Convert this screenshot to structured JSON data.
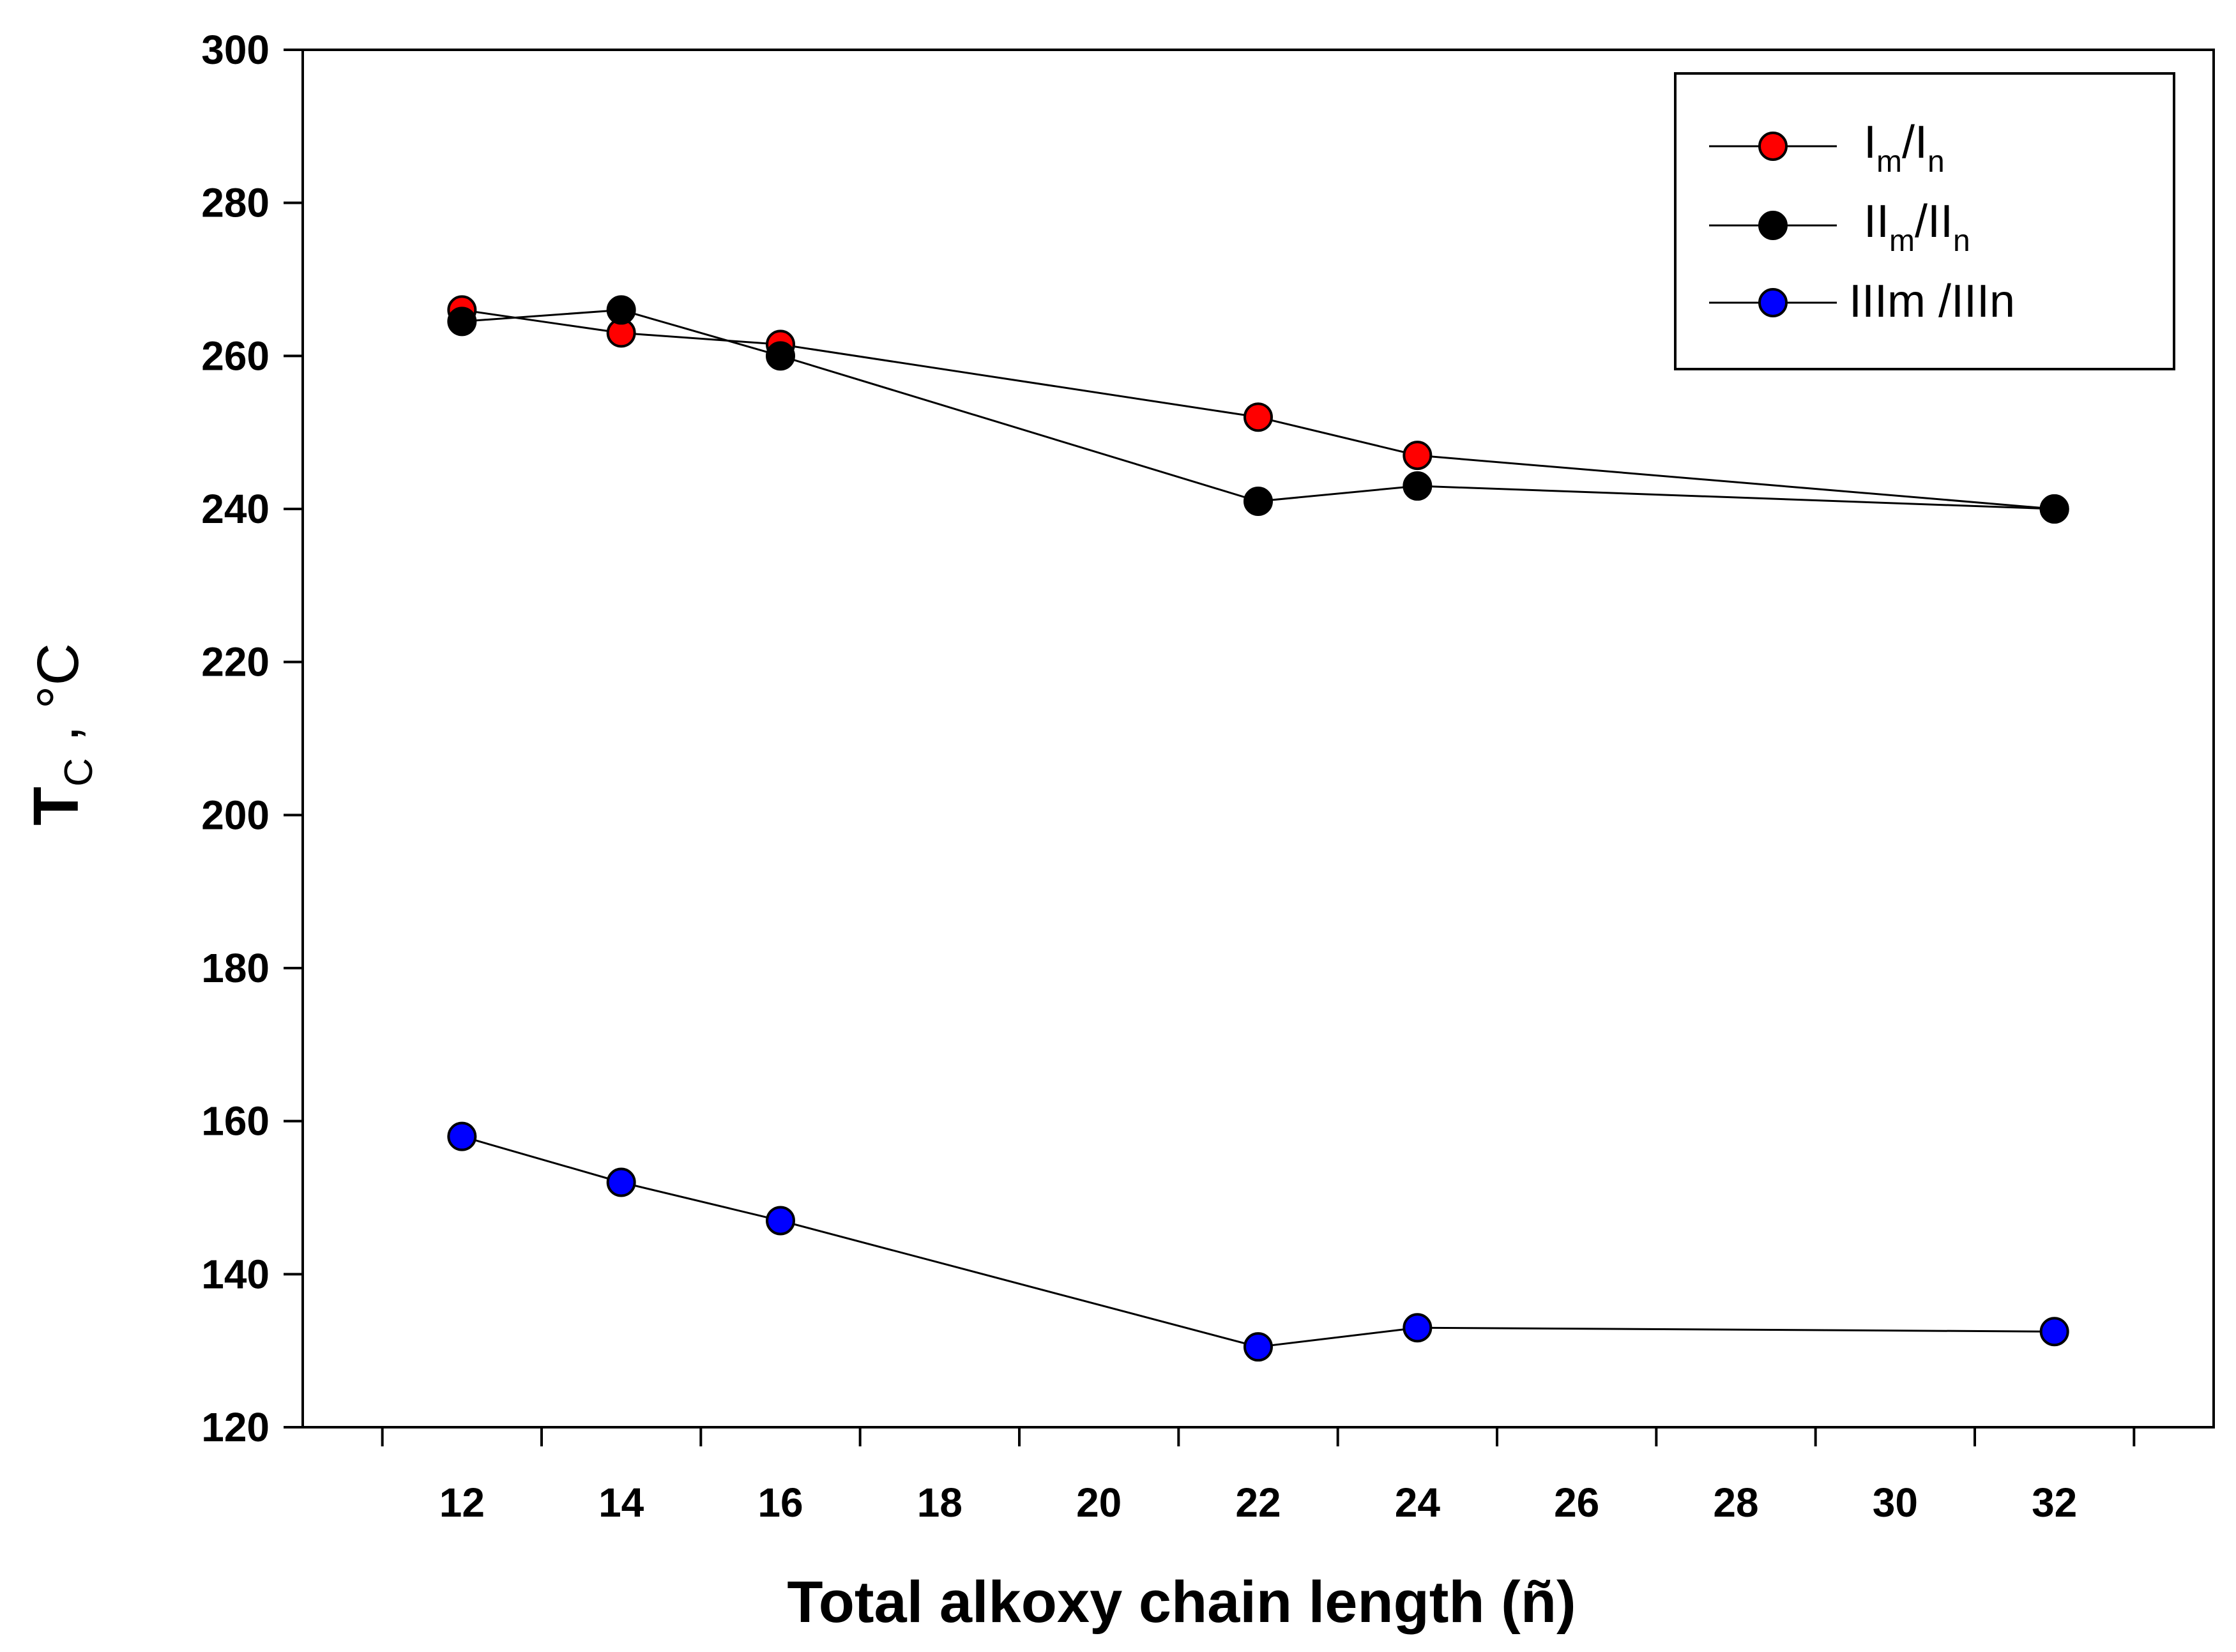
{
  "chart_data": {
    "type": "line",
    "title": "",
    "xlabel": "Total alkoxy chain length (ñ)",
    "ylabel_main": "T",
    "ylabel_sub": "C",
    "ylabel_tail": " , °C",
    "xlim": [
      10,
      34
    ],
    "ylim": [
      120,
      300
    ],
    "xticks": [
      12,
      14,
      16,
      18,
      20,
      22,
      24,
      26,
      28,
      30,
      32
    ],
    "yticks": [
      120,
      140,
      160,
      180,
      200,
      220,
      240,
      260,
      280,
      300
    ],
    "legend_position": "top-right",
    "series": [
      {
        "name": "Im/In",
        "label_main_1": "I",
        "label_sub_1": "m",
        "label_main_2": "/I",
        "label_sub_2": "n",
        "color": "#ff0000",
        "x": [
          12,
          14,
          16,
          22,
          24,
          32
        ],
        "values": [
          266,
          263,
          261.5,
          252,
          247,
          240
        ]
      },
      {
        "name": "IIm/IIn",
        "label_main_1": "II",
        "label_sub_1": "m",
        "label_main_2": "/II",
        "label_sub_2": "n",
        "color": "#000000",
        "x": [
          12,
          14,
          16,
          22,
          24,
          32
        ],
        "values": [
          264.5,
          266,
          260,
          241,
          243,
          240
        ]
      },
      {
        "name": "IIIm /IIIn",
        "label_main_1": "IIIm /IIIn",
        "color": "#0000ff",
        "x": [
          12,
          14,
          16,
          22,
          24,
          32
        ],
        "values": [
          158,
          152,
          147,
          130.5,
          133,
          132.5
        ]
      }
    ]
  }
}
